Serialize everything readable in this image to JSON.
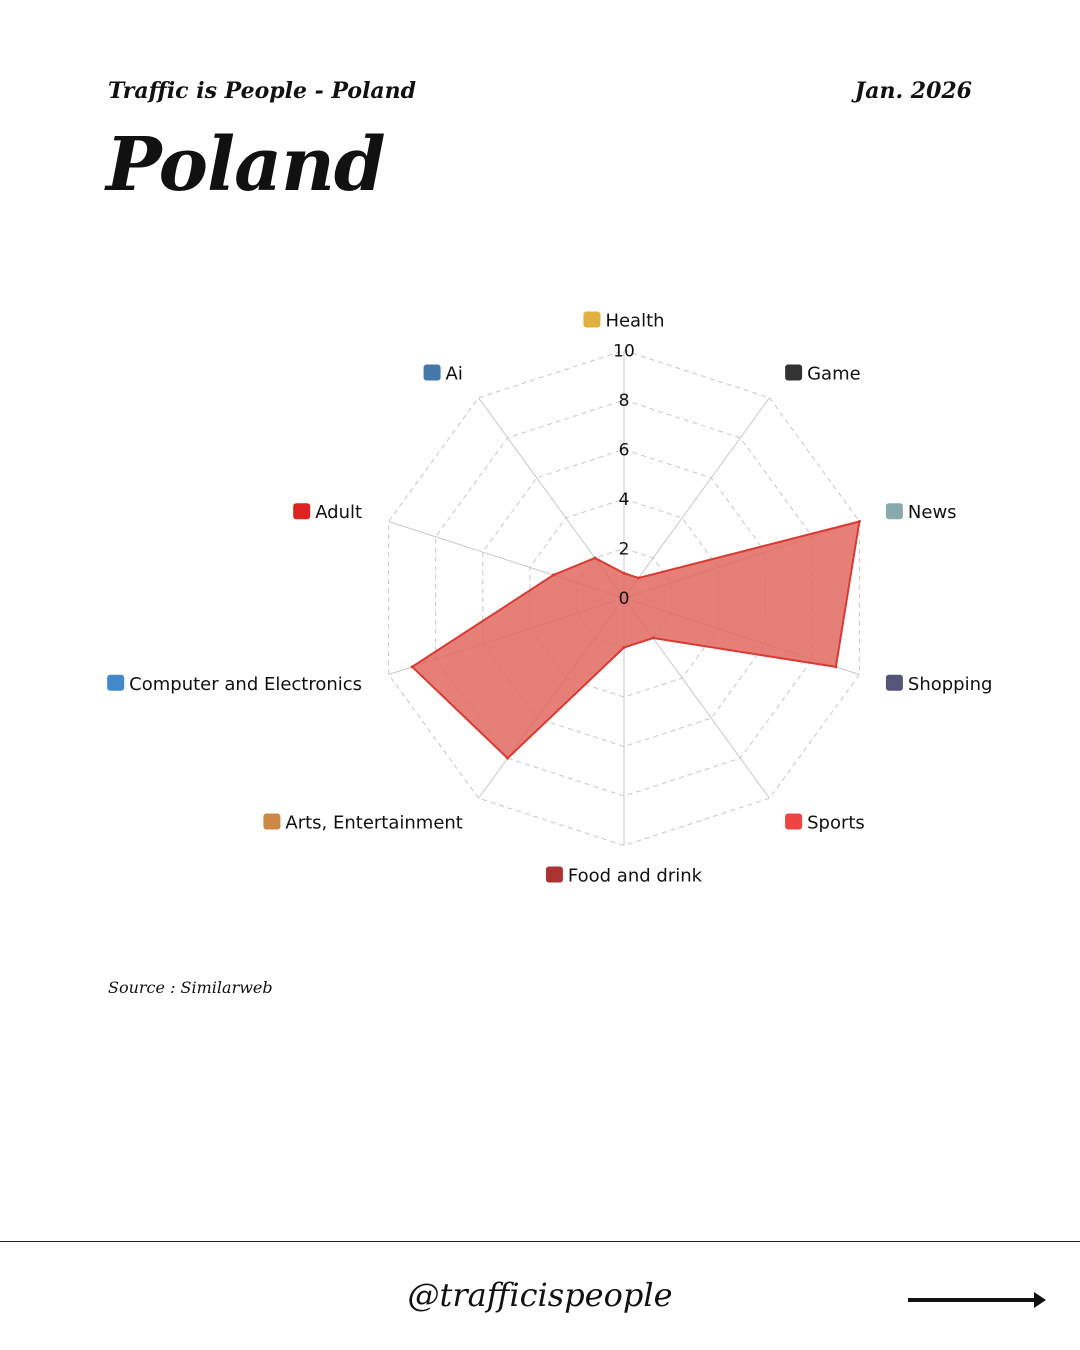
{
  "header": {
    "subtitle": "Traffic is People - Poland",
    "date": "Jan. 2026",
    "title": "Poland"
  },
  "source": "Source : Similarweb",
  "footer": {
    "handle": "@trafficispeople",
    "arrow_icon": "arrow-right-icon"
  },
  "chart_data": {
    "type": "radar",
    "categories": [
      "Health",
      "Game",
      "News",
      "Shopping",
      "Sports",
      "Food and drink",
      "Arts, Entertainment",
      "Computer and Electronics",
      "Adult",
      "Ai"
    ],
    "category_icons": [
      "pill-icon",
      "gamepad-icon",
      "newspaper-icon",
      "shopping-cart-icon",
      "cyclist-female-icon",
      "bento-box-icon",
      "artist-icon",
      "laptop-icon",
      "no-under-18-icon",
      "robot-icon"
    ],
    "values": [
      1,
      1,
      10,
      9,
      2,
      2,
      8,
      9,
      3,
      2
    ],
    "r_ticks": [
      "0",
      "2",
      "4",
      "6",
      "8",
      "10"
    ],
    "rlim": [
      0,
      10
    ],
    "grid": true,
    "color": "#d93a33",
    "fill": "#e0685f"
  }
}
